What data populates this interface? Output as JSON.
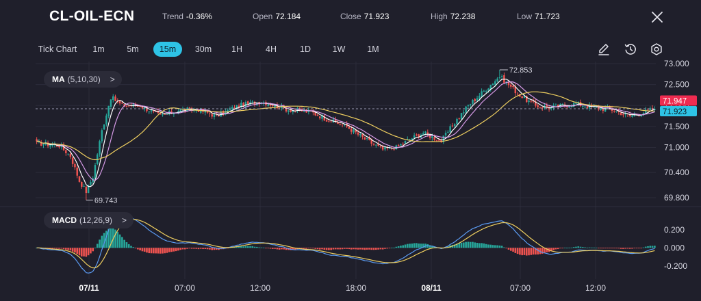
{
  "header": {
    "symbol": "CL-OIL-ECN",
    "trend_label": "Trend",
    "trend_value": "-0.36%",
    "open_label": "Open",
    "open_value": "72.184",
    "close_label": "Close",
    "close_value": "71.923",
    "high_label": "High",
    "high_value": "72.238",
    "low_label": "Low",
    "low_value": "71.723",
    "close_icon": "close-icon"
  },
  "toolbar": {
    "timeframes": [
      "Tick Chart",
      "1m",
      "5m",
      "15m",
      "30m",
      "1H",
      "4H",
      "1D",
      "1W",
      "1M"
    ],
    "active": "15m",
    "tools": [
      "pencil-icon",
      "history-icon",
      "settings-icon"
    ]
  },
  "colors": {
    "background": "#1f1f2b",
    "up": "#26a69a",
    "down": "#ef5350",
    "ma5": "#ffffff",
    "ma10": "#d79be8",
    "ma30": "#f0d060",
    "dif": "#5b9bf2",
    "dea": "#f0d060",
    "accent": "#2ec3e6"
  },
  "indicators": {
    "ma": {
      "title": "MA",
      "params": "(5,10,30)"
    },
    "macd": {
      "title": "MACD",
      "params": "(12,26,9)"
    }
  },
  "chart_data": [
    {
      "type": "candlestick",
      "title": "",
      "y_ticks": [
        "73.000",
        "72.500",
        "72.000",
        "71.500",
        "71.000",
        "70.400",
        "69.800"
      ],
      "ylim": [
        69.75,
        73.05
      ],
      "x_ticks": [
        "07/11",
        "07:00",
        "12:00",
        "18:00",
        "08/11",
        "07:00",
        "12:00"
      ],
      "annotations": [
        {
          "label": "72.853",
          "value": 72.853
        },
        {
          "label": "69.743",
          "value": 69.743
        }
      ],
      "price_labels": [
        {
          "label": "71.947",
          "value": 71.947,
          "color": "#ef2b50"
        },
        {
          "label": "71.923",
          "value": 71.923,
          "color": "#2ec3e6"
        }
      ],
      "grid": true,
      "series": [
        {
          "name": "price",
          "keypoints": [
            [
              0,
              71.1
            ],
            [
              10,
              71.05
            ],
            [
              15,
              70.8
            ],
            [
              19,
              70.2
            ],
            [
              22,
              69.95
            ],
            [
              25,
              70.3
            ],
            [
              29,
              71.4
            ],
            [
              33,
              72.2
            ],
            [
              38,
              72.0
            ],
            [
              46,
              72.0
            ],
            [
              55,
              71.75
            ],
            [
              64,
              71.9
            ],
            [
              72,
              71.9
            ],
            [
              80,
              71.75
            ],
            [
              90,
              72.0
            ],
            [
              100,
              72.1
            ],
            [
              112,
              71.9
            ],
            [
              122,
              71.85
            ],
            [
              130,
              71.65
            ],
            [
              138,
              71.5
            ],
            [
              146,
              71.2
            ],
            [
              154,
              70.95
            ],
            [
              160,
              71.0
            ],
            [
              166,
              71.2
            ],
            [
              172,
              71.35
            ],
            [
              180,
              71.15
            ],
            [
              186,
              71.6
            ],
            [
              192,
              72.0
            ],
            [
              200,
              72.4
            ],
            [
              206,
              72.7
            ],
            [
              210,
              72.5
            ],
            [
              216,
              72.2
            ],
            [
              222,
              72.0
            ],
            [
              228,
              71.95
            ],
            [
              240,
              72.05
            ],
            [
              248,
              71.95
            ],
            [
              256,
              71.9
            ],
            [
              264,
              71.75
            ],
            [
              275,
              71.92
            ]
          ]
        },
        {
          "name": "MA",
          "params": "(5,10,30)"
        }
      ]
    },
    {
      "type": "bar",
      "title": "",
      "y_ticks": [
        "0.200",
        "0.000",
        "-0.200"
      ],
      "ylim": [
        -0.3,
        0.38
      ],
      "series": [
        {
          "name": "MACD",
          "params": "(12,26,9)"
        }
      ]
    }
  ]
}
